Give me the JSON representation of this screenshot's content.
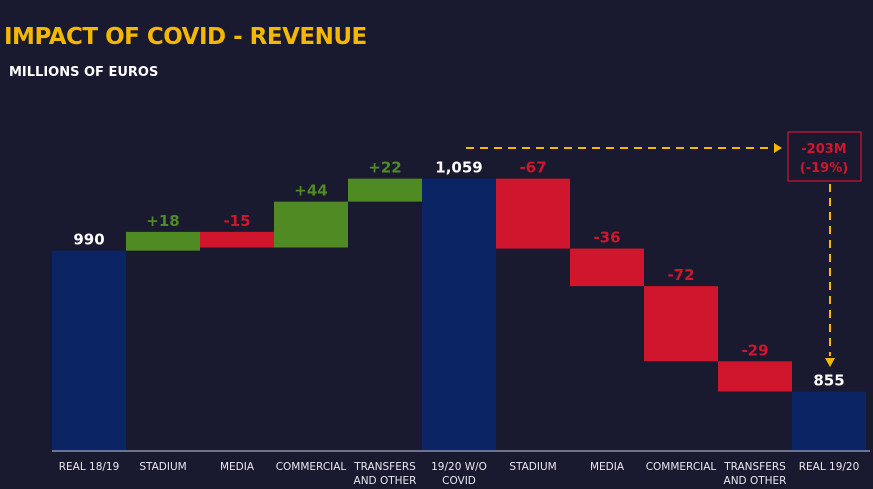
{
  "chart_data": {
    "type": "waterfall",
    "title": "IMPACT OF COVID -  REVENUE",
    "subtitle": "MILLIONS OF EUROS",
    "ylim": [
      798,
      1100
    ],
    "categories": [
      [
        "REAL 18/19"
      ],
      [
        "STADIUM"
      ],
      [
        "MEDIA"
      ],
      [
        "COMMERCIAL"
      ],
      [
        "TRANSFERS",
        "AND OTHER"
      ],
      [
        "19/20 W/O",
        "COVID"
      ],
      [
        "STADIUM"
      ],
      [
        "MEDIA"
      ],
      [
        "COMMERCIAL"
      ],
      [
        "TRANSFERS",
        "AND OTHER"
      ],
      [
        "REAL 19/20"
      ]
    ],
    "bars": [
      {
        "kind": "total",
        "value": 990,
        "label": "990"
      },
      {
        "kind": "delta",
        "value": 18,
        "label": "+18"
      },
      {
        "kind": "delta",
        "value": -15,
        "label": "-15"
      },
      {
        "kind": "delta",
        "value": 44,
        "label": "+44"
      },
      {
        "kind": "delta",
        "value": 22,
        "label": "+22"
      },
      {
        "kind": "total",
        "value": 1059,
        "label": "1,059"
      },
      {
        "kind": "delta",
        "value": -67,
        "label": "-67"
      },
      {
        "kind": "delta",
        "value": -36,
        "label": "-36"
      },
      {
        "kind": "delta",
        "value": -72,
        "label": "-72"
      },
      {
        "kind": "delta",
        "value": -29,
        "label": "-29"
      },
      {
        "kind": "total",
        "value": 855,
        "label": "855"
      }
    ],
    "annotation": {
      "line1": "-203M",
      "line2": "(-19%)"
    },
    "colors": {
      "total": "#0b2463",
      "positive": "#4f8a23",
      "negative": "#d0162d",
      "accent": "#f5b800",
      "axis": "#8a8fa8",
      "total_label": "#ffffff"
    }
  }
}
